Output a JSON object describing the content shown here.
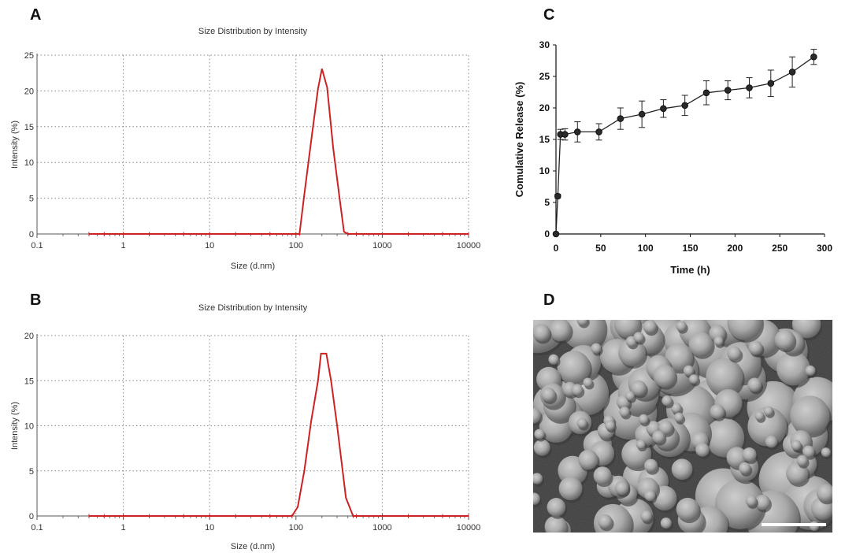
{
  "panels": {
    "a": "A",
    "b": "B",
    "c": "C",
    "d": "D"
  },
  "chart_data": [
    {
      "id": "A",
      "type": "line",
      "title": "Size Distribution by Intensity",
      "xlabel": "Size (d.nm)",
      "ylabel": "Intensity (%)",
      "xscale": "log",
      "xlim": [
        0.1,
        10000
      ],
      "ylim": [
        0,
        25
      ],
      "xticks": [
        0.1,
        1,
        10,
        100,
        1000,
        10000
      ],
      "xtick_labels": [
        "0.1",
        "1",
        "10",
        "100",
        "1000",
        "10000"
      ],
      "yticks": [
        0,
        5,
        10,
        15,
        20,
        25
      ],
      "grid": true,
      "color": "#cc2222",
      "series": [
        {
          "x": [
            0.4,
            0.6,
            1,
            2,
            5,
            10,
            20,
            50,
            100,
            110,
            125,
            150,
            180,
            200,
            230,
            270,
            320,
            360,
            400,
            500,
            1000,
            2000,
            5000,
            10000
          ],
          "y": [
            0,
            0,
            0,
            0,
            0,
            0,
            0,
            0,
            0,
            0,
            5.5,
            13,
            20.3,
            23.1,
            20.5,
            12,
            5,
            0.3,
            0,
            0,
            0,
            0,
            0,
            0
          ]
        }
      ]
    },
    {
      "id": "B",
      "type": "line",
      "title": "Size Distribution by Intensity",
      "xlabel": "Size (d.nm)",
      "ylabel": "Intensity (%)",
      "xscale": "log",
      "xlim": [
        0.1,
        10000
      ],
      "ylim": [
        0,
        20
      ],
      "xticks": [
        0.1,
        1,
        10,
        100,
        1000,
        10000
      ],
      "xtick_labels": [
        "0.1",
        "1",
        "10",
        "100",
        "1000",
        "10000"
      ],
      "yticks": [
        0,
        5,
        10,
        15,
        20
      ],
      "grid": true,
      "color": "#cc2222",
      "series": [
        {
          "x": [
            0.4,
            0.6,
            1,
            2,
            5,
            10,
            20,
            50,
            90,
            105,
            125,
            150,
            180,
            195,
            225,
            255,
            300,
            380,
            460,
            500,
            1000,
            2000,
            5000,
            10000
          ],
          "y": [
            0,
            0,
            0,
            0,
            0,
            0,
            0,
            0,
            0,
            1,
            5,
            10.5,
            15,
            18,
            18,
            15,
            10,
            2,
            0,
            0,
            0,
            0,
            0,
            0
          ]
        }
      ]
    },
    {
      "id": "C",
      "type": "line",
      "xlabel": "Time (h)",
      "ylabel": "Comulative Release (%)",
      "xlim": [
        0,
        300
      ],
      "ylim": [
        0,
        30
      ],
      "xticks": [
        0,
        50,
        100,
        150,
        200,
        250,
        300
      ],
      "yticks": [
        0,
        5,
        10,
        15,
        20,
        25,
        30
      ],
      "grid": false,
      "color": "#222222",
      "series": [
        {
          "x": [
            0,
            2,
            5,
            10,
            24,
            48,
            72,
            96,
            120,
            144,
            168,
            192,
            216,
            240,
            264,
            288
          ],
          "y": [
            0,
            6,
            15.8,
            15.8,
            16.2,
            16.2,
            18.3,
            19,
            19.9,
            20.4,
            22.4,
            22.8,
            23.2,
            23.9,
            25.7,
            28.1
          ],
          "err": [
            0,
            0.3,
            0.8,
            0.9,
            1.6,
            1.3,
            1.7,
            2.1,
            1.4,
            1.6,
            1.9,
            1.5,
            1.6,
            2.1,
            2.4,
            1.2
          ]
        }
      ]
    }
  ]
}
